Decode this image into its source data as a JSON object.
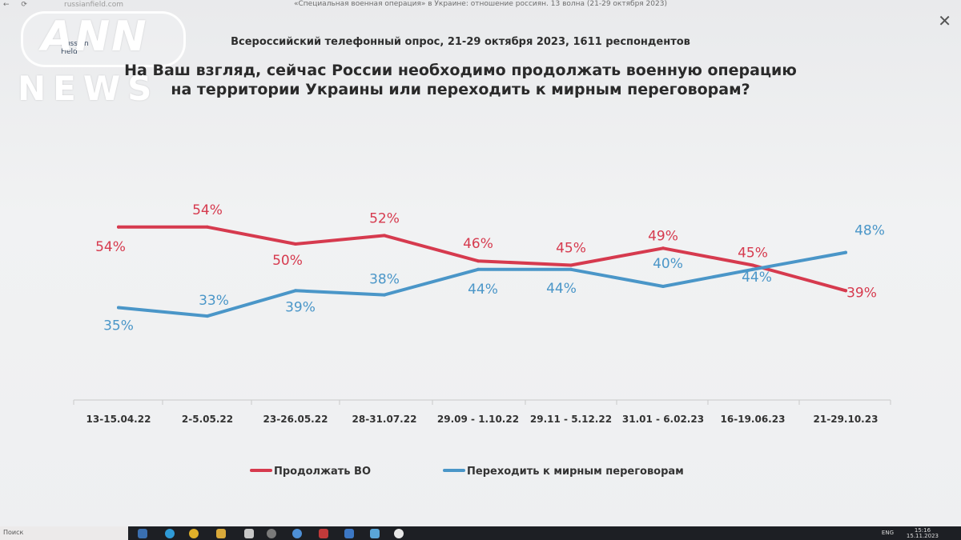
{
  "browser": {
    "nav_glyphs": "← ⟳",
    "address": "russianfield.com",
    "doc_title": "«Специальная военная операция» в Украине: отношение россиян. 13 волна (21-29 октября 2023)",
    "close_glyph": "✕"
  },
  "watermark": {
    "line1": "ANN",
    "line2": "NEWS",
    "org_mark": "Russian\nField"
  },
  "header": {
    "subtitle": "Всероссийский телефонный опрос, 21-29 октября 2023, 1611 респондентов",
    "question_line1": "На Ваш взгляд, сейчас России необходимо продолжать военную операцию",
    "question_line2": "на территории Украины или переходить к мирным переговорам?"
  },
  "chart_data": {
    "type": "line",
    "categories": [
      "13-15.04.22",
      "2-5.05.22",
      "23-26.05.22",
      "28-31.07.22",
      "29.09 - 1.10.22",
      "29.11 - 5.12.22",
      "31.01 - 6.02.23",
      "16-19.06.23",
      "21-29.10.23"
    ],
    "series": [
      {
        "name": "Продолжать ВО",
        "color": "#d63a4e",
        "values": [
          54,
          54,
          50,
          52,
          46,
          45,
          49,
          45,
          39
        ],
        "labels": [
          "54%",
          "54%",
          "50%",
          "52%",
          "46%",
          "45%",
          "49%",
          "45%",
          "39%"
        ]
      },
      {
        "name": "Переходить к мирным переговорам",
        "color": "#4a96c8",
        "values": [
          35,
          33,
          39,
          38,
          44,
          44,
          40,
          44,
          48
        ],
        "labels": [
          "35%",
          "33%",
          "39%",
          "38%",
          "44%",
          "44%",
          "40%",
          "44%",
          "48%"
        ]
      }
    ],
    "legend_position": "bottom",
    "grid": false
  },
  "taskbar": {
    "search_text": "Поиск",
    "lang": "ENG",
    "time": "15:16",
    "date": "15.11.2023"
  }
}
